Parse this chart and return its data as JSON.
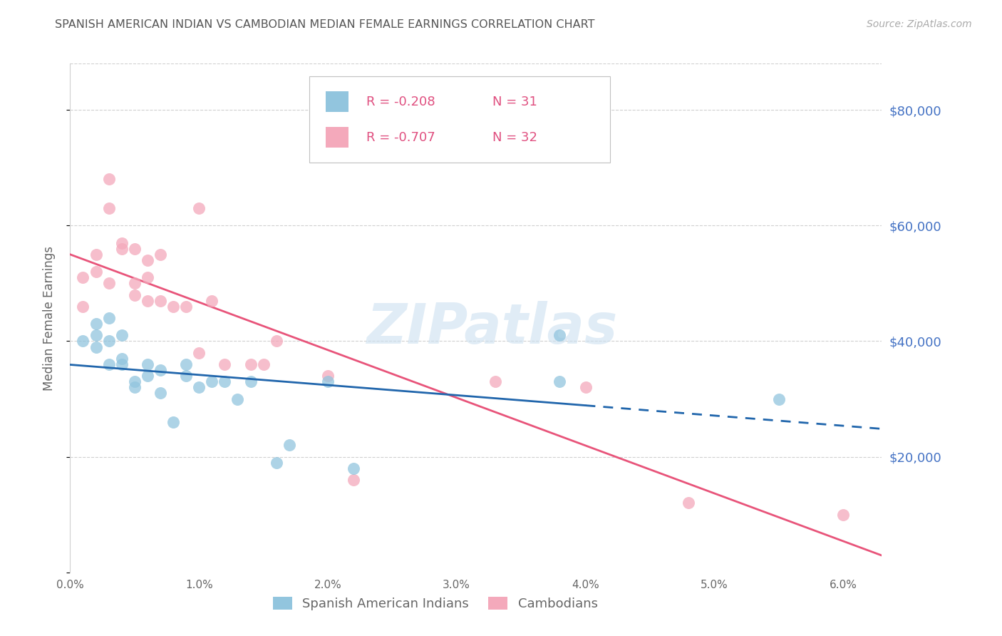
{
  "title": "SPANISH AMERICAN INDIAN VS CAMBODIAN MEDIAN FEMALE EARNINGS CORRELATION CHART",
  "source": "Source: ZipAtlas.com",
  "ylabel": "Median Female Earnings",
  "watermark": "ZIPatlas",
  "yticks": [
    0,
    20000,
    40000,
    60000,
    80000
  ],
  "ytick_labels": [
    "",
    "$20,000",
    "$40,000",
    "$60,000",
    "$80,000"
  ],
  "ylim": [
    0,
    88000
  ],
  "xlim": [
    0.0,
    0.063
  ],
  "legend_blue_r": "R = -0.208",
  "legend_blue_n": "N = 31",
  "legend_pink_r": "R = -0.707",
  "legend_pink_n": "N = 32",
  "legend_blue_label": "Spanish American Indians",
  "legend_pink_label": "Cambodians",
  "blue_color": "#92c5de",
  "pink_color": "#f4a9bb",
  "blue_line_color": "#2166ac",
  "pink_line_color": "#e8547a",
  "background_color": "#ffffff",
  "grid_color": "#d0d0d0",
  "title_color": "#555555",
  "source_color": "#aaaaaa",
  "axis_label_color": "#666666",
  "right_tick_color": "#4472c4",
  "legend_text_color": "#e05080",
  "blue_scatter_x": [
    0.001,
    0.002,
    0.002,
    0.002,
    0.003,
    0.003,
    0.003,
    0.004,
    0.004,
    0.004,
    0.005,
    0.005,
    0.006,
    0.006,
    0.007,
    0.007,
    0.008,
    0.009,
    0.009,
    0.01,
    0.011,
    0.012,
    0.013,
    0.014,
    0.016,
    0.017,
    0.02,
    0.022,
    0.038,
    0.038,
    0.055
  ],
  "blue_scatter_y": [
    40000,
    39000,
    43000,
    41000,
    40000,
    36000,
    44000,
    37000,
    36000,
    41000,
    33000,
    32000,
    34000,
    36000,
    35000,
    31000,
    26000,
    34000,
    36000,
    32000,
    33000,
    33000,
    30000,
    33000,
    19000,
    22000,
    33000,
    18000,
    33000,
    41000,
    30000
  ],
  "pink_scatter_x": [
    0.001,
    0.001,
    0.002,
    0.002,
    0.003,
    0.003,
    0.003,
    0.004,
    0.004,
    0.005,
    0.005,
    0.005,
    0.006,
    0.006,
    0.006,
    0.007,
    0.007,
    0.008,
    0.009,
    0.01,
    0.01,
    0.011,
    0.012,
    0.014,
    0.015,
    0.016,
    0.02,
    0.022,
    0.033,
    0.04,
    0.048,
    0.06
  ],
  "pink_scatter_y": [
    46000,
    51000,
    52000,
    55000,
    50000,
    68000,
    63000,
    56000,
    57000,
    50000,
    56000,
    48000,
    54000,
    51000,
    47000,
    55000,
    47000,
    46000,
    46000,
    38000,
    63000,
    47000,
    36000,
    36000,
    36000,
    40000,
    34000,
    16000,
    33000,
    32000,
    12000,
    10000
  ]
}
